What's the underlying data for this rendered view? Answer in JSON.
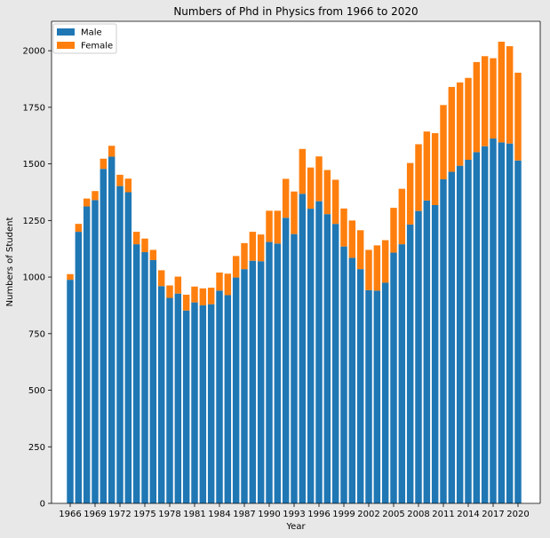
{
  "chart_data": {
    "type": "bar",
    "stacked": true,
    "title": "Numbers of Phd in Physics from 1966 to 2020",
    "xlabel": "Year",
    "ylabel": "Numbers of Student",
    "ylim": [
      0,
      2130
    ],
    "yticks": [
      0,
      250,
      500,
      750,
      1000,
      1250,
      1500,
      1750,
      2000
    ],
    "xticks": [
      1966,
      1969,
      1972,
      1975,
      1978,
      1981,
      1984,
      1987,
      1990,
      1993,
      1996,
      1999,
      2002,
      2005,
      2008,
      2011,
      2014,
      2017,
      2020
    ],
    "grid": false,
    "legend": "top-left",
    "categories": [
      1966,
      1967,
      1968,
      1969,
      1970,
      1971,
      1972,
      1973,
      1974,
      1975,
      1976,
      1977,
      1978,
      1979,
      1980,
      1981,
      1982,
      1983,
      1984,
      1985,
      1986,
      1987,
      1988,
      1989,
      1990,
      1991,
      1992,
      1993,
      1994,
      1995,
      1996,
      1997,
      1998,
      1999,
      2000,
      2001,
      2002,
      2003,
      2004,
      2005,
      2006,
      2007,
      2008,
      2009,
      2010,
      2011,
      2012,
      2013,
      2014,
      2015,
      2016,
      2017,
      2018,
      2019,
      2020
    ],
    "series": [
      {
        "name": "Male",
        "color": "#1f77b4",
        "values": [
          988,
          1200,
          1312,
          1340,
          1478,
          1532,
          1402,
          1375,
          1145,
          1110,
          1075,
          960,
          908,
          927,
          852,
          888,
          875,
          880,
          940,
          920,
          998,
          1035,
          1072,
          1070,
          1155,
          1148,
          1262,
          1190,
          1368,
          1302,
          1335,
          1278,
          1235,
          1135,
          1085,
          1035,
          942,
          940,
          975,
          1108,
          1145,
          1232,
          1292,
          1338,
          1318,
          1432,
          1465,
          1492,
          1518,
          1552,
          1578,
          1612,
          1595,
          1590,
          1515
        ]
      },
      {
        "name": "Female",
        "color": "#ff7f0e",
        "values": [
          25,
          35,
          35,
          40,
          45,
          48,
          50,
          60,
          55,
          60,
          45,
          70,
          55,
          75,
          70,
          70,
          75,
          73,
          80,
          95,
          95,
          115,
          128,
          118,
          138,
          145,
          172,
          188,
          198,
          182,
          198,
          195,
          195,
          168,
          165,
          172,
          178,
          200,
          188,
          198,
          245,
          272,
          295,
          305,
          318,
          328,
          375,
          368,
          362,
          398,
          398,
          355,
          445,
          430,
          388
        ]
      }
    ]
  }
}
